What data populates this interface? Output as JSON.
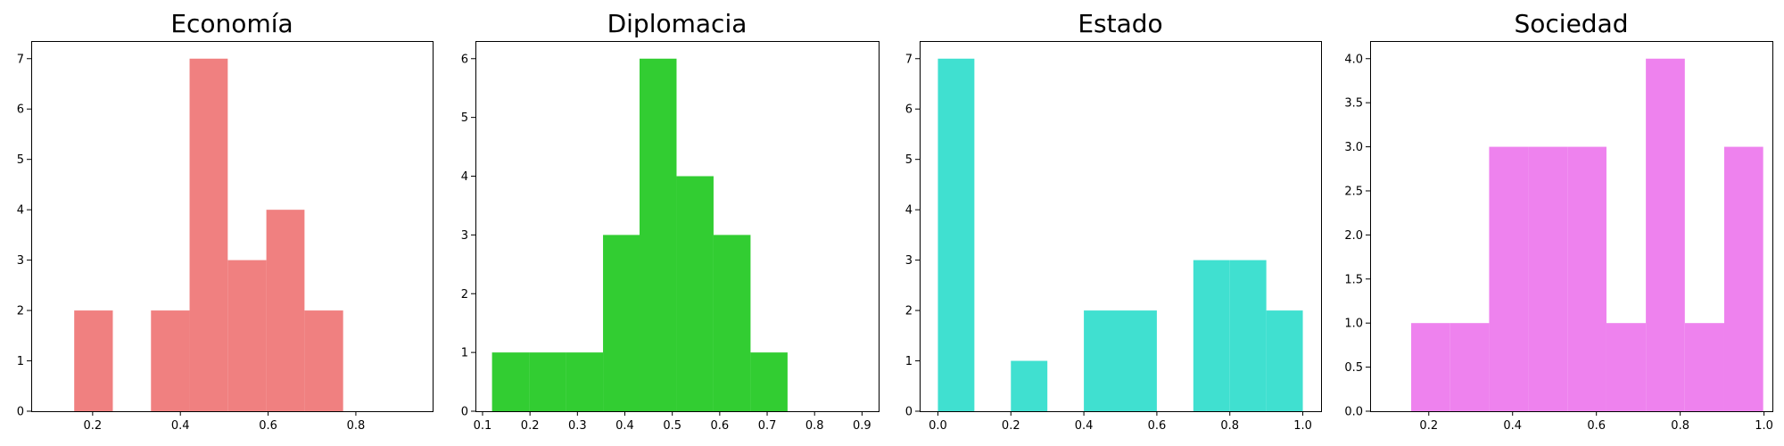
{
  "chart_data": [
    {
      "type": "bar",
      "title": "Economía",
      "color": "#F08080",
      "xlim": [
        0.06,
        0.975
      ],
      "ylim": [
        0,
        7.35
      ],
      "xticks": [
        {
          "value": 0.2,
          "label": "0.2"
        },
        {
          "value": 0.4,
          "label": "0.4"
        },
        {
          "value": 0.6,
          "label": "0.6"
        },
        {
          "value": 0.8,
          "label": "0.8"
        }
      ],
      "yticks": [
        {
          "value": 0,
          "label": "0"
        },
        {
          "value": 1,
          "label": "1"
        },
        {
          "value": 2,
          "label": "2"
        },
        {
          "value": 3,
          "label": "3"
        },
        {
          "value": 4,
          "label": "4"
        },
        {
          "value": 5,
          "label": "5"
        },
        {
          "value": 6,
          "label": "6"
        },
        {
          "value": 7,
          "label": "7"
        }
      ],
      "bins": [
        {
          "x0": 0.158,
          "x1": 0.246,
          "count": 2
        },
        {
          "x0": 0.246,
          "x1": 0.333,
          "count": 0
        },
        {
          "x0": 0.333,
          "x1": 0.421,
          "count": 2
        },
        {
          "x0": 0.421,
          "x1": 0.508,
          "count": 7
        },
        {
          "x0": 0.508,
          "x1": 0.596,
          "count": 3
        },
        {
          "x0": 0.596,
          "x1": 0.683,
          "count": 4
        },
        {
          "x0": 0.683,
          "x1": 0.771,
          "count": 2
        }
      ]
    },
    {
      "type": "bar",
      "title": "Diplomacia",
      "color": "#32CD32",
      "xlim": [
        0.085,
        0.935
      ],
      "ylim": [
        0,
        6.3
      ],
      "xticks": [
        {
          "value": 0.1,
          "label": "0.1"
        },
        {
          "value": 0.2,
          "label": "0.2"
        },
        {
          "value": 0.3,
          "label": "0.3"
        },
        {
          "value": 0.4,
          "label": "0.4"
        },
        {
          "value": 0.5,
          "label": "0.5"
        },
        {
          "value": 0.6,
          "label": "0.6"
        },
        {
          "value": 0.7,
          "label": "0.7"
        },
        {
          "value": 0.8,
          "label": "0.8"
        },
        {
          "value": 0.9,
          "label": "0.9"
        }
      ],
      "yticks": [
        {
          "value": 0,
          "label": "0"
        },
        {
          "value": 1,
          "label": "1"
        },
        {
          "value": 2,
          "label": "2"
        },
        {
          "value": 3,
          "label": "3"
        },
        {
          "value": 4,
          "label": "4"
        },
        {
          "value": 5,
          "label": "5"
        },
        {
          "value": 6,
          "label": "6"
        }
      ],
      "bins": [
        {
          "x0": 0.12,
          "x1": 0.198,
          "count": 1
        },
        {
          "x0": 0.198,
          "x1": 0.276,
          "count": 1
        },
        {
          "x0": 0.276,
          "x1": 0.354,
          "count": 1
        },
        {
          "x0": 0.354,
          "x1": 0.431,
          "count": 3
        },
        {
          "x0": 0.431,
          "x1": 0.509,
          "count": 6
        },
        {
          "x0": 0.509,
          "x1": 0.587,
          "count": 4
        },
        {
          "x0": 0.587,
          "x1": 0.665,
          "count": 3
        },
        {
          "x0": 0.665,
          "x1": 0.743,
          "count": 1
        }
      ]
    },
    {
      "type": "bar",
      "title": "Estado",
      "color": "#40E0D0",
      "xlim": [
        -0.05,
        1.05
      ],
      "ylim": [
        0,
        7.35
      ],
      "xticks": [
        {
          "value": 0.0,
          "label": "0.0"
        },
        {
          "value": 0.2,
          "label": "0.2"
        },
        {
          "value": 0.4,
          "label": "0.4"
        },
        {
          "value": 0.6,
          "label": "0.6"
        },
        {
          "value": 0.8,
          "label": "0.8"
        },
        {
          "value": 1.0,
          "label": "1.0"
        }
      ],
      "yticks": [
        {
          "value": 0,
          "label": "0"
        },
        {
          "value": 1,
          "label": "1"
        },
        {
          "value": 2,
          "label": "2"
        },
        {
          "value": 3,
          "label": "3"
        },
        {
          "value": 4,
          "label": "4"
        },
        {
          "value": 5,
          "label": "5"
        },
        {
          "value": 6,
          "label": "6"
        },
        {
          "value": 7,
          "label": "7"
        }
      ],
      "bins": [
        {
          "x0": 0.0,
          "x1": 0.1,
          "count": 7
        },
        {
          "x0": 0.1,
          "x1": 0.2,
          "count": 0
        },
        {
          "x0": 0.2,
          "x1": 0.3,
          "count": 1
        },
        {
          "x0": 0.3,
          "x1": 0.4,
          "count": 0
        },
        {
          "x0": 0.4,
          "x1": 0.5,
          "count": 2
        },
        {
          "x0": 0.5,
          "x1": 0.6,
          "count": 2
        },
        {
          "x0": 0.6,
          "x1": 0.7,
          "count": 0
        },
        {
          "x0": 0.7,
          "x1": 0.8,
          "count": 3
        },
        {
          "x0": 0.8,
          "x1": 0.9,
          "count": 3
        },
        {
          "x0": 0.9,
          "x1": 1.0,
          "count": 2
        }
      ]
    },
    {
      "type": "bar",
      "title": "Sociedad",
      "color": "#EE82EE",
      "xlim": [
        0.06,
        1.02
      ],
      "ylim": [
        0,
        4.2
      ],
      "xticks": [
        {
          "value": 0.2,
          "label": "0.2"
        },
        {
          "value": 0.4,
          "label": "0.4"
        },
        {
          "value": 0.6,
          "label": "0.6"
        },
        {
          "value": 0.8,
          "label": "0.8"
        },
        {
          "value": 1.0,
          "label": "1.0"
        }
      ],
      "yticks": [
        {
          "value": 0,
          "label": "0.0"
        },
        {
          "value": 0.5,
          "label": "0.5"
        },
        {
          "value": 1,
          "label": "1.0"
        },
        {
          "value": 1.5,
          "label": "1.5"
        },
        {
          "value": 2,
          "label": "2.0"
        },
        {
          "value": 2.5,
          "label": "2.5"
        },
        {
          "value": 3,
          "label": "3.0"
        },
        {
          "value": 3.5,
          "label": "3.5"
        },
        {
          "value": 4,
          "label": "4.0"
        }
      ],
      "bins": [
        {
          "x0": 0.158,
          "x1": 0.25,
          "count": 1
        },
        {
          "x0": 0.25,
          "x1": 0.344,
          "count": 1
        },
        {
          "x0": 0.344,
          "x1": 0.437,
          "count": 3
        },
        {
          "x0": 0.437,
          "x1": 0.531,
          "count": 3
        },
        {
          "x0": 0.531,
          "x1": 0.624,
          "count": 3
        },
        {
          "x0": 0.624,
          "x1": 0.718,
          "count": 1
        },
        {
          "x0": 0.718,
          "x1": 0.811,
          "count": 4
        },
        {
          "x0": 0.811,
          "x1": 0.905,
          "count": 1
        },
        {
          "x0": 0.905,
          "x1": 0.998,
          "count": 3
        }
      ]
    }
  ]
}
